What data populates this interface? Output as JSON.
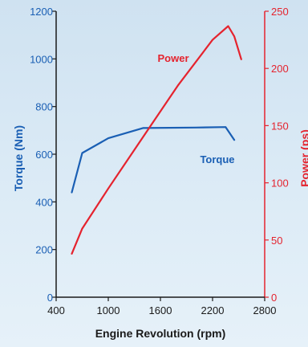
{
  "chart_data": {
    "type": "line",
    "xlabel": "Engine Revolution (rpm)",
    "ylabel_left": "Torque (Nm)",
    "ylabel_right": "Power (ps)",
    "x_ticks": [
      400,
      1000,
      1600,
      2200,
      2800
    ],
    "y_left_ticks": [
      0,
      200,
      400,
      600,
      800,
      1000,
      1200
    ],
    "y_right_ticks": [
      0,
      50,
      100,
      150,
      200,
      250
    ],
    "xlim": [
      400,
      2800
    ],
    "ylim_left": [
      0,
      1200
    ],
    "ylim_right": [
      0,
      250
    ],
    "grid": false,
    "colors": {
      "torque": "#1a5fb4",
      "power": "#e5232e",
      "axis_left": "#1a5fb4",
      "axis_right": "#e5232e",
      "text": "#1a1a1a"
    },
    "series": [
      {
        "name": "Torque",
        "axis": "left",
        "x": [
          580,
          700,
          1000,
          1400,
          2000,
          2350,
          2450
        ],
        "y": [
          440,
          605,
          667,
          710,
          712,
          714,
          660
        ]
      },
      {
        "name": "Power",
        "axis": "right",
        "x": [
          580,
          700,
          1000,
          1400,
          1800,
          2200,
          2380,
          2450,
          2530
        ],
        "y": [
          38,
          60,
          95,
          140,
          185,
          225,
          237,
          228,
          208
        ]
      }
    ]
  }
}
